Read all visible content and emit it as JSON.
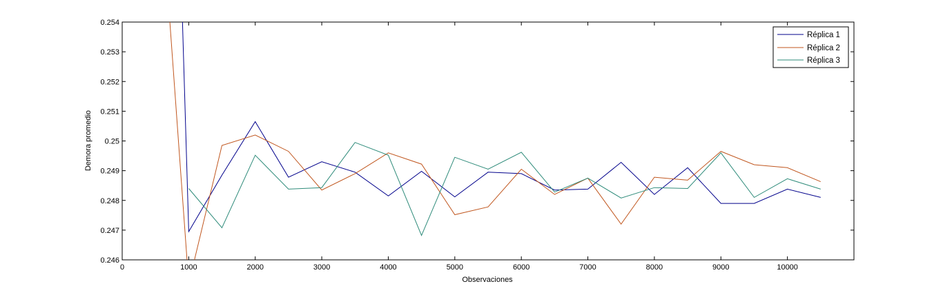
{
  "chart_data": {
    "type": "line",
    "title": "",
    "xlabel": "Observaciones",
    "ylabel": "Demora promedio",
    "xlim": [
      0,
      11000
    ],
    "ylim": [
      0.246,
      0.254
    ],
    "xticks": [
      0,
      1000,
      2000,
      3000,
      4000,
      5000,
      6000,
      7000,
      8000,
      9000,
      10000
    ],
    "yticks": [
      0.246,
      0.247,
      0.248,
      0.249,
      0.25,
      0.251,
      0.252,
      0.253,
      0.254
    ],
    "xtick_labels": [
      "0",
      "1000",
      "2000",
      "3000",
      "4000",
      "5000",
      "6000",
      "7000",
      "8000",
      "9000",
      "10000"
    ],
    "ytick_labels": [
      "0.246",
      "0.247",
      "0.248",
      "0.249",
      "0.25",
      "0.251",
      "0.252",
      "0.253",
      "0.254"
    ],
    "grid": false,
    "legend_position": "top-right",
    "series": [
      {
        "name": "Réplica 1",
        "color": "#00008b",
        "x": [
          900,
          1000,
          1500,
          2000,
          2500,
          3000,
          3500,
          4000,
          4500,
          5000,
          5500,
          6000,
          6500,
          7000,
          7500,
          8000,
          8500,
          9000,
          9500,
          10000,
          10500
        ],
        "y": [
          0.2545,
          0.24695,
          0.24885,
          0.25065,
          0.24878,
          0.2493,
          0.24895,
          0.24815,
          0.24898,
          0.24812,
          0.24895,
          0.2489,
          0.24835,
          0.24838,
          0.24928,
          0.2482,
          0.2491,
          0.2479,
          0.2479,
          0.24838,
          0.2481
        ]
      },
      {
        "name": "Réplica 2",
        "color": "#c0561e",
        "x": [
          700,
          1000,
          1500,
          2000,
          2500,
          3000,
          3500,
          4000,
          4500,
          5000,
          5500,
          6000,
          6500,
          7000,
          7500,
          8000,
          8500,
          9000,
          9500,
          10000,
          10500
        ],
        "y": [
          0.2545,
          0.2452,
          0.24985,
          0.2502,
          0.24965,
          0.24835,
          0.2489,
          0.2496,
          0.24922,
          0.24752,
          0.24778,
          0.24905,
          0.2482,
          0.24875,
          0.2472,
          0.24878,
          0.24868,
          0.24965,
          0.2492,
          0.2491,
          0.24863
        ]
      },
      {
        "name": "Réplica 3",
        "color": "#2e8b7a",
        "x": [
          1000,
          1500,
          2000,
          2500,
          3000,
          3500,
          4000,
          4500,
          5000,
          5500,
          6000,
          6500,
          7000,
          7500,
          8000,
          8500,
          9000,
          9500,
          10000,
          10500
        ],
        "y": [
          0.2484,
          0.24708,
          0.24952,
          0.24838,
          0.24843,
          0.24995,
          0.24952,
          0.24682,
          0.24945,
          0.24905,
          0.24962,
          0.24828,
          0.24875,
          0.24808,
          0.24843,
          0.2484,
          0.2496,
          0.2481,
          0.24873,
          0.24838
        ]
      }
    ]
  }
}
